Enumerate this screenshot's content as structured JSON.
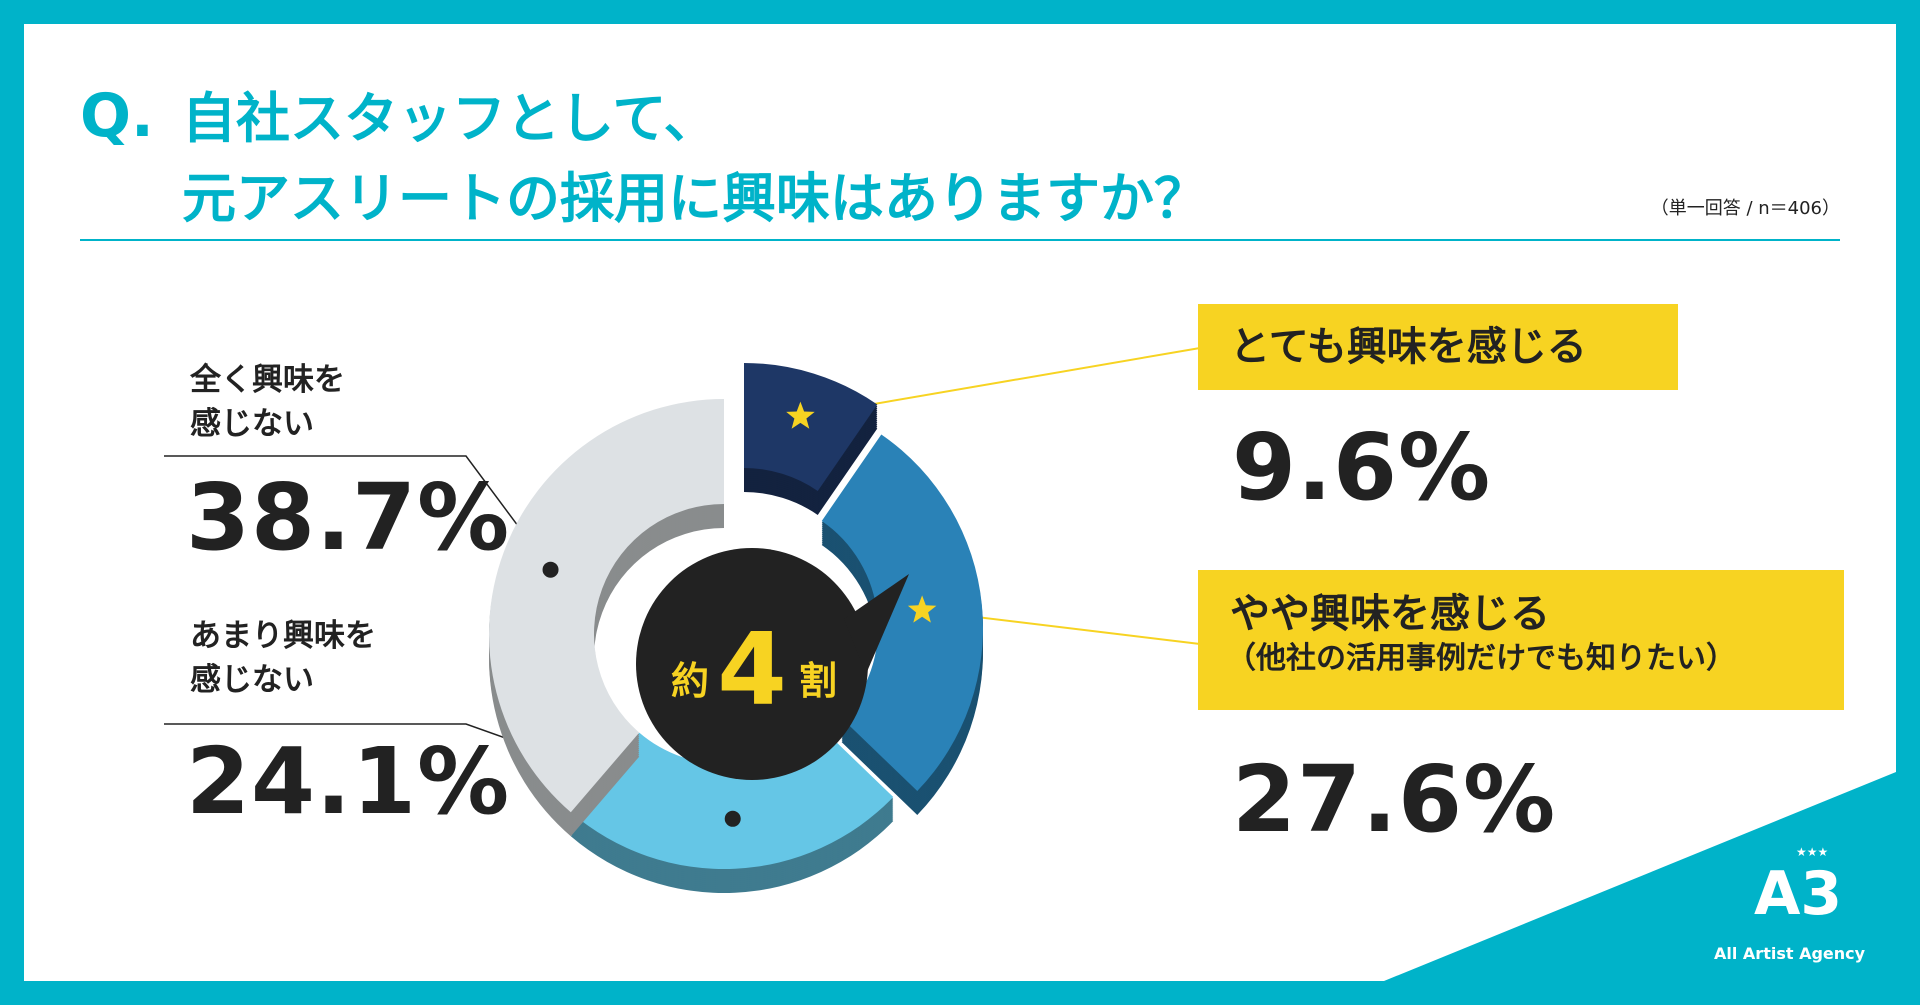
{
  "question": {
    "mark": "Q.",
    "line1": "自社スタッフとして、",
    "line2": "元アスリートの採用に興味はありますか？",
    "meta": "（単一回答 / n＝406）"
  },
  "center": {
    "prefix": "約",
    "number": "4",
    "suffix": "割"
  },
  "labels": {
    "very_line": "とても興味を感じる",
    "somewhat_line1": "やや興味を感じる",
    "somewhat_line2": "（他社の活用事例だけでも知りたい）",
    "notvery_line1": "あまり興味を",
    "notvery_line2": "感じない",
    "notatall_line1": "全く興味を",
    "notatall_line2": "感じない"
  },
  "logo": {
    "mark": "A3",
    "stars": "★★★",
    "text": "All Artist Agency"
  },
  "colors": {
    "teal": "#00b3c9",
    "very": "#1e3766",
    "somewhat": "#2a82b7",
    "notvery": "#65c6e6",
    "notatall": "#dde1e4",
    "badge": "#f7d322",
    "star": "#f7d322"
  },
  "chart_data": {
    "type": "pie",
    "style": "donut",
    "categories": [
      "とても興味を感じる",
      "やや興味を感じる",
      "あまり興味を感じない",
      "全く興味を感じない"
    ],
    "values": [
      9.6,
      27.6,
      24.1,
      38.7
    ],
    "value_labels": [
      "9.6%",
      "27.6%",
      "24.1%",
      "38.7%"
    ],
    "unit": "%",
    "annotation": "約4割"
  }
}
